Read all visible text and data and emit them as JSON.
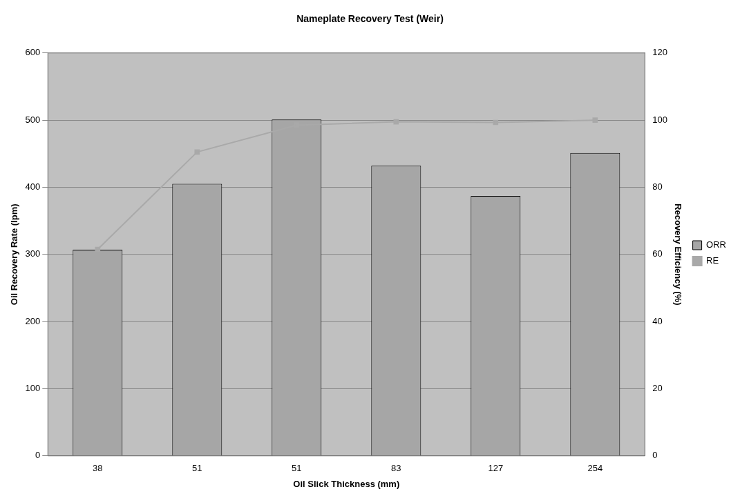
{
  "chart_data": {
    "type": "bar",
    "title": "Nameplate Recovery Test (Weir)",
    "xlabel": "Oil Slick Thickness (mm)",
    "ylabel": "Oil Recovery Rate (lpm)",
    "y2label": "Recovery Efficiency (%)",
    "categories": [
      "38",
      "51",
      "51",
      "83",
      "127",
      "254"
    ],
    "series": [
      {
        "name": "ORR",
        "color": "#a6a6a6",
        "values": [
          307,
          405,
          501,
          432,
          387,
          451
        ]
      },
      {
        "name": "RE",
        "type": "line",
        "axis": "y2",
        "color": "#a9a9a9",
        "values": [
          61.5,
          90.5,
          98.5,
          99.5,
          99.3,
          100
        ]
      }
    ],
    "ylim": [
      0,
      600
    ],
    "yticks": [
      0,
      100,
      200,
      300,
      400,
      500,
      600
    ],
    "y2lim": [
      0,
      120
    ],
    "y2ticks": [
      0,
      20,
      40,
      60,
      80,
      100,
      120
    ],
    "grid": "y",
    "legend": "right",
    "marker": "square",
    "line_style": "solid"
  }
}
